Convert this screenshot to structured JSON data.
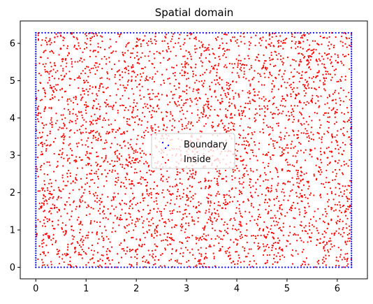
{
  "chart_data": {
    "type": "scatter",
    "title": "Spatial domain",
    "xlabel": "",
    "ylabel": "",
    "xlim": [
      -0.31,
      6.6
    ],
    "ylim": [
      -0.31,
      6.6
    ],
    "domain": [
      0,
      6.2832
    ],
    "x_ticks": [
      "0",
      "1",
      "2",
      "3",
      "4",
      "5",
      "6"
    ],
    "y_ticks": [
      "0",
      "1",
      "2",
      "3",
      "4",
      "5",
      "6"
    ],
    "grid": false,
    "legend": {
      "placement": "center"
    },
    "series": [
      {
        "name": "Boundary",
        "color": "#0000ff",
        "points_per_side": 100,
        "marker": "dot"
      },
      {
        "name": "Inside",
        "color": "#ff0000",
        "count": 4000,
        "seed": 7,
        "marker": "dot"
      }
    ]
  }
}
